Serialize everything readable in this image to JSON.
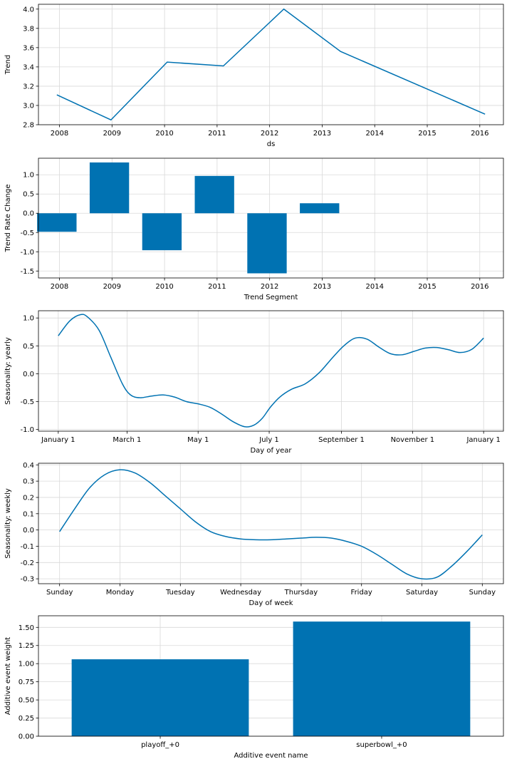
{
  "chart_data": [
    {
      "type": "line",
      "xlabel": "ds",
      "ylabel": "Trend",
      "x_ticks": [
        "2008",
        "2009",
        "2010",
        "2011",
        "2012",
        "2013",
        "2014",
        "2015",
        "2016"
      ],
      "xlim": [
        2007.6,
        2016.45
      ],
      "ylim": [
        2.8,
        4.05
      ],
      "y_ticks": [
        "2.8",
        "3.0",
        "3.2",
        "3.4",
        "3.6",
        "3.8",
        "4.0"
      ],
      "y_tick_values": [
        2.8,
        3.0,
        3.2,
        3.4,
        3.6,
        3.8,
        4.0
      ],
      "grid": true,
      "color": "#0072B2",
      "x": [
        2007.95,
        2008.98,
        2010.05,
        2011.12,
        2012.27,
        2013.35,
        2016.1
      ],
      "y": [
        3.11,
        2.85,
        3.45,
        3.41,
        4.0,
        3.56,
        2.91
      ]
    },
    {
      "type": "bar",
      "xlabel": "Trend Segment",
      "ylabel": "Trend Rate Change",
      "x_ticks": [
        "2008",
        "2009",
        "2010",
        "2011",
        "2012",
        "2013",
        "2014",
        "2015",
        "2016"
      ],
      "xlim": [
        2007.6,
        2016.45
      ],
      "ylim": [
        -1.68,
        1.43
      ],
      "y_ticks": [
        "-1.5",
        "-1.0",
        "-0.5",
        "0.0",
        "0.5",
        "1.0"
      ],
      "y_tick_values": [
        -1.5,
        -1.0,
        -0.5,
        0.0,
        0.5,
        1.0
      ],
      "grid": true,
      "color": "#0072B2",
      "bar_width": 0.75,
      "x": [
        2007.95,
        2008.95,
        2009.95,
        2010.95,
        2011.95,
        2012.95
      ],
      "values": [
        -0.48,
        1.32,
        -0.96,
        0.97,
        -1.56,
        0.26
      ]
    },
    {
      "type": "line",
      "xlabel": "Day of year",
      "ylabel": "Seasonality: yearly",
      "x_ticks": [
        "January 1",
        "March 1",
        "May 1",
        "July 1",
        "September 1",
        "November 1",
        "January 1"
      ],
      "x_tick_values": [
        0,
        59,
        120,
        181,
        243,
        304,
        365
      ],
      "xlim": [
        -17,
        382
      ],
      "ylim": [
        -1.03,
        1.13
      ],
      "y_ticks": [
        "-1.0",
        "-0.5",
        "0.0",
        "0.5",
        "1.0"
      ],
      "y_tick_values": [
        -1.0,
        -0.5,
        0.0,
        0.5,
        1.0
      ],
      "grid": true,
      "color": "#0072B2",
      "x": [
        0,
        10,
        19,
        25,
        35,
        45,
        55,
        62,
        70,
        80,
        90,
        100,
        110,
        120,
        130,
        140,
        150,
        160,
        168,
        175,
        182,
        190,
        200,
        212,
        224,
        235,
        245,
        255,
        265,
        275,
        285,
        295,
        305,
        315,
        325,
        335,
        345,
        355,
        365
      ],
      "y": [
        0.68,
        0.95,
        1.06,
        1.02,
        0.78,
        0.3,
        -0.18,
        -0.38,
        -0.43,
        -0.4,
        -0.38,
        -0.42,
        -0.5,
        -0.54,
        -0.6,
        -0.72,
        -0.86,
        -0.95,
        -0.92,
        -0.8,
        -0.6,
        -0.42,
        -0.28,
        -0.18,
        0.02,
        0.28,
        0.5,
        0.64,
        0.62,
        0.48,
        0.36,
        0.34,
        0.4,
        0.46,
        0.47,
        0.43,
        0.38,
        0.44,
        0.64
      ]
    },
    {
      "type": "line",
      "xlabel": "Day of week",
      "ylabel": "Seasonality: weekly",
      "x_ticks": [
        "Sunday",
        "Monday",
        "Tuesday",
        "Wednesday",
        "Thursday",
        "Friday",
        "Saturday",
        "Sunday"
      ],
      "x_tick_values": [
        0,
        1,
        2,
        3,
        4,
        5,
        6,
        7
      ],
      "xlim": [
        -0.35,
        7.35
      ],
      "ylim": [
        -0.33,
        0.41
      ],
      "y_ticks": [
        "-0.3",
        "-0.2",
        "-0.1",
        "0.0",
        "0.1",
        "0.2",
        "0.3",
        "0.4"
      ],
      "y_tick_values": [
        -0.3,
        -0.2,
        -0.1,
        0.0,
        0.1,
        0.2,
        0.3,
        0.4
      ],
      "grid": true,
      "color": "#0072B2",
      "x": [
        0,
        0.25,
        0.5,
        0.75,
        1.0,
        1.25,
        1.5,
        1.75,
        2.0,
        2.25,
        2.5,
        2.75,
        3.0,
        3.25,
        3.5,
        3.75,
        4.0,
        4.25,
        4.5,
        4.75,
        5.0,
        5.25,
        5.5,
        5.75,
        6.0,
        6.25,
        6.5,
        6.75,
        7.0
      ],
      "y": [
        -0.01,
        0.13,
        0.26,
        0.34,
        0.37,
        0.35,
        0.29,
        0.21,
        0.13,
        0.05,
        -0.01,
        -0.04,
        -0.055,
        -0.06,
        -0.06,
        -0.055,
        -0.05,
        -0.045,
        -0.05,
        -0.07,
        -0.1,
        -0.15,
        -0.21,
        -0.27,
        -0.3,
        -0.29,
        -0.22,
        -0.13,
        -0.03
      ]
    },
    {
      "type": "bar",
      "xlabel": "Additive event name",
      "ylabel": "Additive event weight",
      "categories": [
        "playoff_+0",
        "superbowl_+0"
      ],
      "values": [
        1.06,
        1.58
      ],
      "ylim": [
        0,
        1.66
      ],
      "y_ticks": [
        "0.00",
        "0.25",
        "0.50",
        "0.75",
        "1.00",
        "1.25",
        "1.50"
      ],
      "y_tick_values": [
        0,
        0.25,
        0.5,
        0.75,
        1.0,
        1.25,
        1.5
      ],
      "grid": true,
      "color": "#0072B2",
      "bar_width": 0.8
    }
  ]
}
